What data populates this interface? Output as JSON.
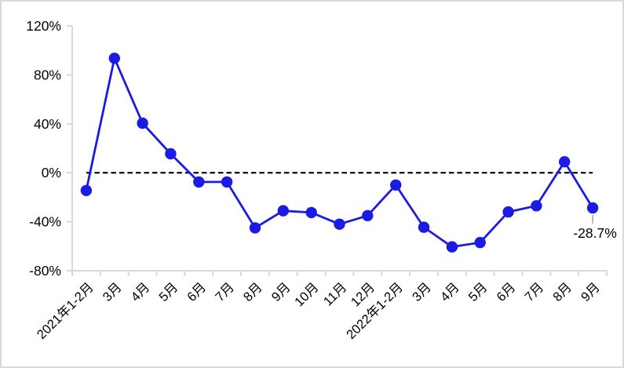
{
  "chart_data": {
    "type": "line",
    "title": "",
    "xlabel": "",
    "ylabel": "",
    "categories": [
      "2021年1-2月",
      "3月",
      "4月",
      "5月",
      "6月",
      "7月",
      "8月",
      "9月",
      "10月",
      "11月",
      "12月",
      "2022年1-2月",
      "3月",
      "4月",
      "5月",
      "6月",
      "7月",
      "8月",
      "9月"
    ],
    "series": [
      {
        "values": [
          -14.5,
          93.5,
          40.5,
          15.5,
          -7.5,
          -7.5,
          -45,
          -31,
          -32.5,
          -42,
          -35,
          -10,
          -44.5,
          -60.5,
          -57,
          -32,
          -27,
          9,
          -28.7
        ]
      }
    ],
    "unit": "%",
    "ylim": [
      -80,
      120
    ],
    "y_ticks": [
      {
        "value": 120,
        "label": "120%"
      },
      {
        "value": 80,
        "label": "80%"
      },
      {
        "value": 40,
        "label": "40%"
      },
      {
        "value": 0,
        "label": "0%"
      },
      {
        "value": -40,
        "label": "-40%"
      },
      {
        "value": -80,
        "label": "-80%"
      }
    ],
    "zero_line": {
      "dashed": true
    },
    "grid": false,
    "legend": false,
    "annotation": {
      "text": "-28.7%",
      "category_index": 18
    },
    "colors": {
      "line": "#1b1be4",
      "marker": "#1b1be4",
      "axis": "#d9d9d9",
      "zero_line": "#000000",
      "leader": "#a6a6a6",
      "text": "#000000",
      "frame": "#d9d9d9",
      "background": "#ffffff"
    }
  }
}
